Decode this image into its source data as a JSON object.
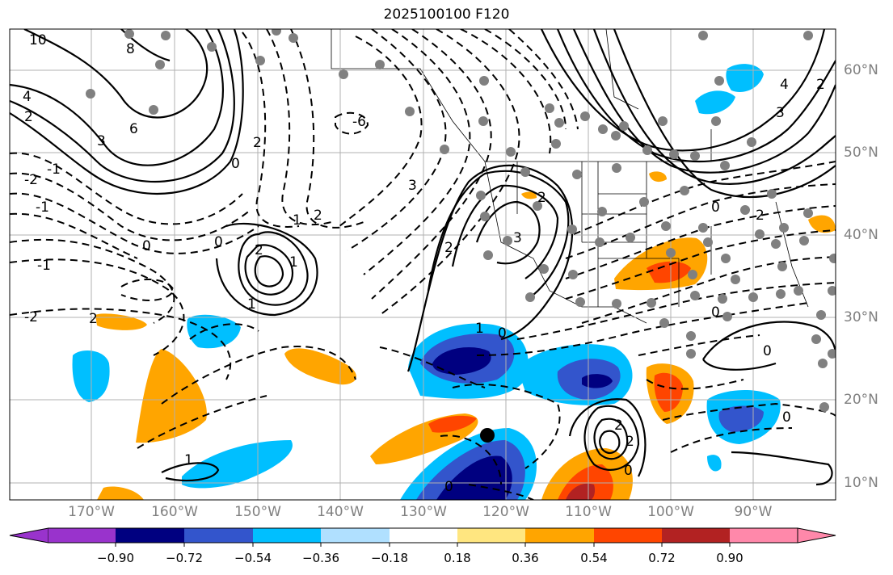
{
  "title": "2025100100 F120",
  "map": {
    "lat_labels": [
      "60°N",
      "50°N",
      "40°N",
      "30°N",
      "20°N",
      "10°N"
    ],
    "lon_labels": [
      "170°W",
      "160°W",
      "150°W",
      "140°W",
      "130°W",
      "120°W",
      "110°W",
      "100°W",
      "90°W"
    ],
    "contour_labels": [
      "10",
      "8",
      "4",
      "2",
      "3",
      "6",
      "0",
      "2",
      "1",
      "2",
      "1",
      "0",
      "1",
      "2",
      "0",
      "2",
      "-6",
      "1",
      "2",
      "3",
      "2",
      "3",
      "0",
      "0",
      "1",
      "2",
      "2",
      "0",
      "3",
      "0",
      "4",
      "0",
      "0",
      "2",
      "0",
      "2",
      "-1",
      "-2",
      "-2",
      "-1",
      "-1"
    ],
    "shading_field_sign": "positive warm / negative cool"
  },
  "colorbar": {
    "tick_labels": [
      "−0.90",
      "−0.72",
      "−0.54",
      "−0.36",
      "−0.18",
      "0.18",
      "0.36",
      "0.54",
      "0.72",
      "0.90"
    ],
    "colors": [
      "#9933cc",
      "#000080",
      "#3355cc",
      "#00bfff",
      "#b0e0ff",
      "#ffffff",
      "#ffe680",
      "#ffa500",
      "#ff4500",
      "#b22222",
      "#ff88aa"
    ]
  }
}
